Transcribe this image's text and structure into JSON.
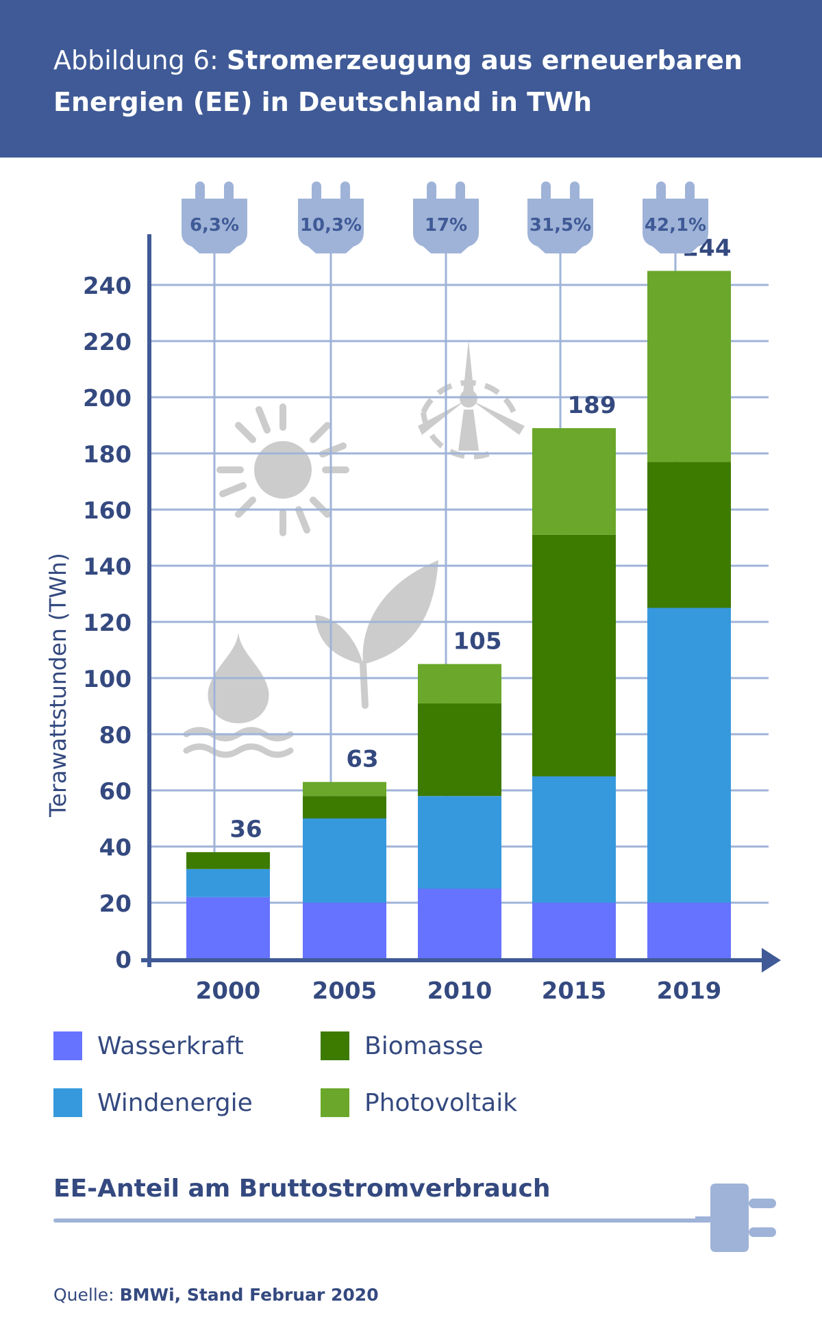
{
  "header": {
    "prefix": "Abbildung 6:",
    "title": "Stromerzeugung aus erneuerbaren Energien (EE) in Deutschland in TWh"
  },
  "chart_data": {
    "type": "bar",
    "stacked": true,
    "categories": [
      "2000",
      "2005",
      "2010",
      "2015",
      "2019"
    ],
    "series": [
      {
        "name": "Wasserkraft",
        "color": "#6673ff",
        "values": [
          22,
          20,
          25,
          20,
          20
        ]
      },
      {
        "name": "Windenergie",
        "color": "#3799dd",
        "values": [
          10,
          30,
          33,
          45,
          105
        ]
      },
      {
        "name": "Biomasse",
        "color": "#3d7a00",
        "values": [
          6,
          8,
          33,
          86,
          52
        ]
      },
      {
        "name": "Photovoltaik",
        "color": "#6aa72a",
        "values": [
          0,
          5,
          14,
          38,
          68
        ]
      }
    ],
    "totals": [
      "36",
      "63",
      "105",
      "189",
      "244"
    ],
    "ee_share": [
      "6,3%",
      "10,3%",
      "17%",
      "31,5%",
      "42,1%"
    ],
    "ylabel": "Terawattstunden (TWh)",
    "ylim": [
      0,
      260
    ],
    "yticks": [
      0,
      20,
      40,
      60,
      80,
      100,
      120,
      140,
      160,
      180,
      200,
      220,
      240
    ],
    "grid": true,
    "legend_position": "bottom",
    "decorative_icons": [
      "water-drop-icon",
      "sun-icon",
      "leaf-icon",
      "wind-turbine-icon"
    ]
  },
  "legend": {
    "items": [
      {
        "label": "Wasserkraft",
        "color": "#6673ff"
      },
      {
        "label": "Biomasse",
        "color": "#3d7a00"
      },
      {
        "label": "Windenergie",
        "color": "#3799dd"
      },
      {
        "label": "Photovoltaik",
        "color": "#6aa72a"
      }
    ]
  },
  "footer": {
    "title": "EE-Anteil am Bruttostromverbrauch",
    "plug_icon": "plug-icon"
  },
  "source": {
    "label": "Quelle:",
    "text": "BMWi, Stand Februar 2020"
  },
  "colors": {
    "header_bg": "#3f5a96",
    "text": "#34497f",
    "grid": "#9fb3d8",
    "axis": "#3f5a96",
    "icon_gray": "#cccccc"
  }
}
